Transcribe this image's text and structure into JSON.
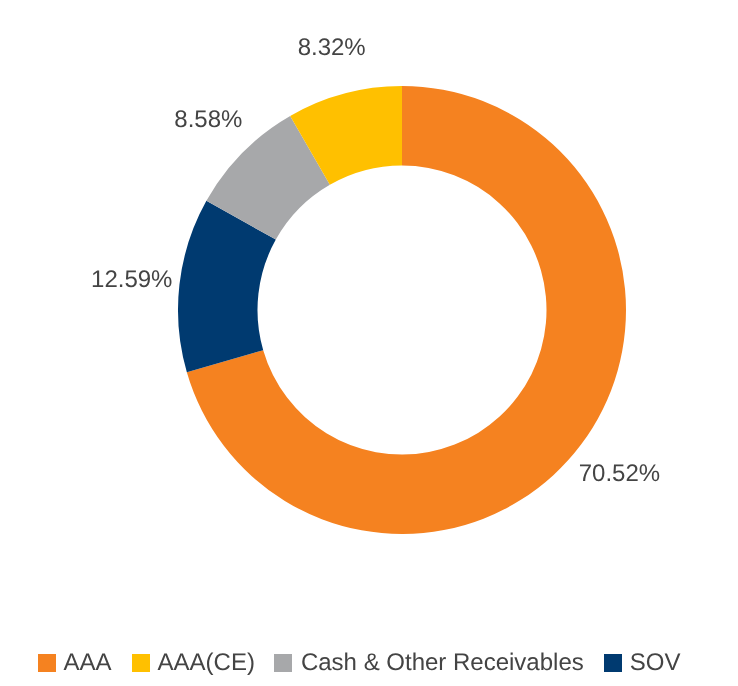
{
  "chart_data": {
    "type": "donut",
    "categories": [
      "AAA",
      "SOV",
      "Cash & Other Receivables",
      "AAA(CE)"
    ],
    "values": [
      70.52,
      12.59,
      8.58,
      8.32
    ],
    "value_labels": [
      "70.52%",
      "12.59%",
      "8.58%",
      "8.32%"
    ],
    "colors": [
      "#f58220",
      "#003a70",
      "#a7a8aa",
      "#ffc000"
    ],
    "legend": "bottom"
  }
}
